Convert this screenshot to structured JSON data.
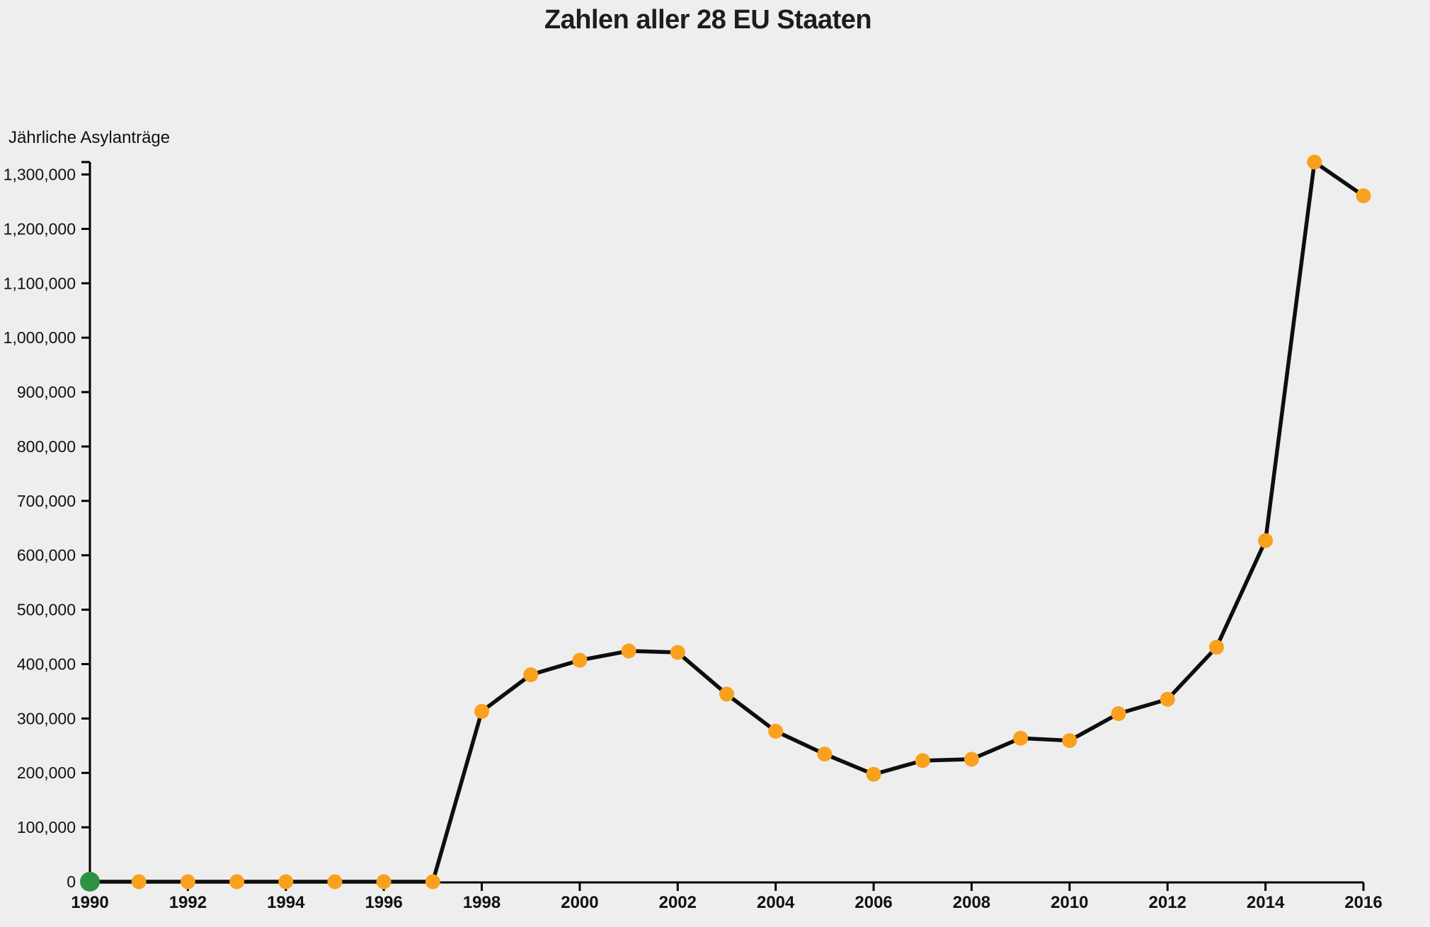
{
  "header": {
    "title": "Zahlen aller 28 EU Staaten"
  },
  "chart_data": {
    "type": "line",
    "title": "Zahlen aller 28 EU Staaten",
    "xlabel": "",
    "ylabel": "Jährliche Asylanträge",
    "x": [
      1990,
      1991,
      1992,
      1993,
      1994,
      1995,
      1996,
      1997,
      1998,
      1999,
      2000,
      2001,
      2002,
      2003,
      2004,
      2005,
      2006,
      2007,
      2008,
      2009,
      2010,
      2011,
      2012,
      2013,
      2014,
      2015,
      2016
    ],
    "series": [
      {
        "name": "Jährliche Asylanträge",
        "values": [
          0,
          0,
          0,
          0,
          0,
          0,
          0,
          0,
          313080,
          380450,
          407055,
          424180,
          421470,
          344800,
          276675,
          234675,
          197410,
          222635,
          225150,
          263835,
          259400,
          309040,
          335290,
          431090,
          626960,
          1322845,
          1260910
        ]
      }
    ],
    "xlim": [
      1990,
      2016
    ],
    "ylim": [
      0,
      1322845
    ],
    "x_tick_labels": [
      "1990",
      "1992",
      "1994",
      "1996",
      "1998",
      "2000",
      "2002",
      "2004",
      "2006",
      "2008",
      "2010",
      "2012",
      "2014",
      "2016"
    ],
    "x_tick_step": 2,
    "y_tick_values": [
      0,
      100000,
      200000,
      300000,
      400000,
      500000,
      600000,
      700000,
      800000,
      900000,
      1000000,
      1100000,
      1200000,
      1300000
    ],
    "y_tick_labels": [
      "0",
      "100,000",
      "200,000",
      "300,000",
      "400,000",
      "500,000",
      "600,000",
      "700,000",
      "800,000",
      "900,000",
      "1,000,000",
      "1,100,000",
      "1,200,000",
      "1,300,000"
    ],
    "grid": false,
    "legend": false,
    "highlight_first_point": {
      "year": 1990,
      "value": 0,
      "color": "#2e9245"
    },
    "colors": {
      "background": "#eeeeee",
      "line": "#0e0e0e",
      "point": "#f9a11e",
      "first_point": "#2e9245",
      "axis": "#000000",
      "text": "#111111"
    }
  }
}
